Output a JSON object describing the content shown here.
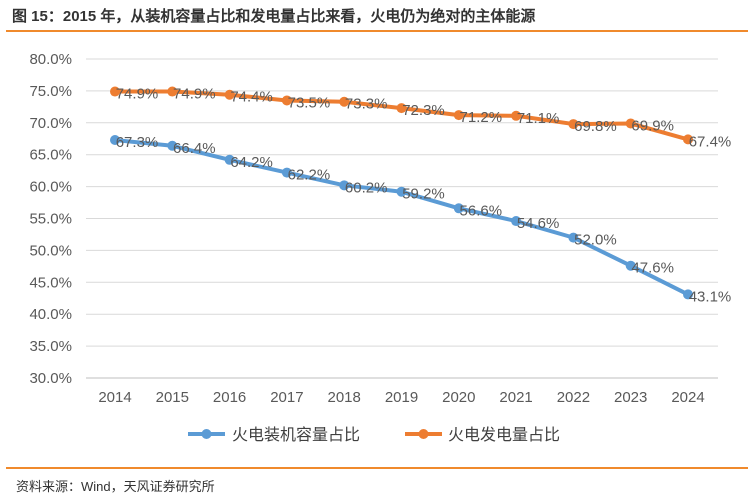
{
  "title": "图 15：2015 年，从装机容量占比和发电量占比来看，火电仍为绝对的主体能源",
  "source": "资料来源：Wind，天风证券研究所",
  "chart_data": {
    "type": "line",
    "categories": [
      "2014",
      "2015",
      "2016",
      "2017",
      "2018",
      "2019",
      "2020",
      "2021",
      "2022",
      "2023",
      "2024"
    ],
    "ylim": [
      30,
      80
    ],
    "yticks": [
      "30.0%",
      "35.0%",
      "40.0%",
      "45.0%",
      "50.0%",
      "55.0%",
      "60.0%",
      "65.0%",
      "70.0%",
      "75.0%",
      "80.0%"
    ],
    "grid": true,
    "legend_position": "bottom",
    "series": [
      {
        "name": "火电装机容量占比",
        "color": "#5b9bd5",
        "values": [
          67.3,
          66.4,
          64.2,
          62.2,
          60.2,
          59.2,
          56.6,
          54.6,
          52.0,
          47.6,
          43.1
        ],
        "labels": [
          "67.3%",
          "66.4%",
          "64.2%",
          "62.2%",
          "60.2%",
          "59.2%",
          "56.6%",
          "54.6%",
          "52.0%",
          "47.6%",
          "43.1%"
        ]
      },
      {
        "name": "火电发电量占比",
        "color": "#ed7d31",
        "values": [
          74.9,
          74.9,
          74.4,
          73.5,
          73.3,
          72.3,
          71.2,
          71.1,
          69.8,
          69.9,
          67.4
        ],
        "labels": [
          "74.9%",
          "74.9%",
          "74.4%",
          "73.5%",
          "73.3%",
          "72.3%",
          "71.2%",
          "71.1%",
          "69.8%",
          "69.9%",
          "67.4%"
        ]
      }
    ]
  }
}
